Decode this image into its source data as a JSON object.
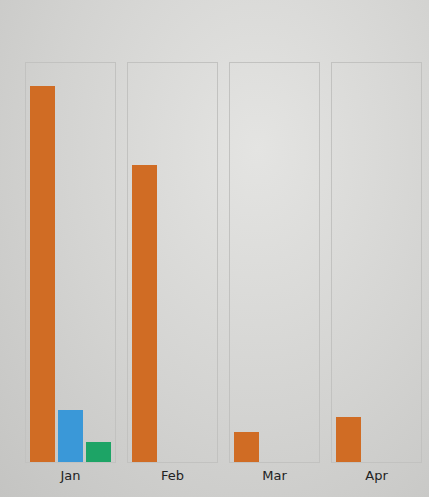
{
  "chart_data": {
    "type": "bar",
    "categories": [
      "Jan",
      "Feb",
      "Mar",
      "Apr"
    ],
    "series": [
      {
        "color": "#d06c24",
        "values": [
          376,
          297,
          30,
          45
        ]
      },
      {
        "color": "#3a98d8",
        "values": [
          52,
          null,
          null,
          null
        ]
      },
      {
        "color": "#1da466",
        "values": [
          20,
          null,
          null,
          null
        ]
      }
    ],
    "ylim": [
      0,
      400
    ],
    "grid": false,
    "tick_labels": "x"
  }
}
